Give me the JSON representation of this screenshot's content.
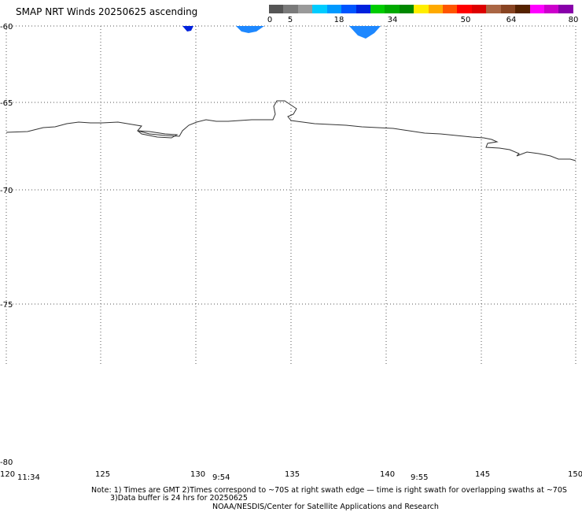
{
  "title": "SMAP NRT Winds 20250625 ascending",
  "colorbar": {
    "labels": [
      "0",
      "5",
      "18",
      "34",
      "50",
      "64",
      "80"
    ],
    "segments": [
      {
        "color": "#555555"
      },
      {
        "color": "#7a7a7a"
      },
      {
        "color": "#9a9a9a"
      },
      {
        "color": "#00ccff"
      },
      {
        "color": "#0099ff"
      },
      {
        "color": "#0055ff"
      },
      {
        "color": "#0022dd"
      },
      {
        "color": "#00cc00"
      },
      {
        "color": "#00aa00"
      },
      {
        "color": "#008800"
      },
      {
        "color": "#ffee00"
      },
      {
        "color": "#ffaa00"
      },
      {
        "color": "#ff5500"
      },
      {
        "color": "#ff0000"
      },
      {
        "color": "#dd0000"
      },
      {
        "color": "#aa6644"
      },
      {
        "color": "#884422"
      },
      {
        "color": "#552200"
      },
      {
        "color": "#ff00ff"
      },
      {
        "color": "#cc00cc"
      },
      {
        "color": "#8800aa"
      }
    ]
  },
  "map": {
    "lat_labels": [
      "-60",
      "-65",
      "-70",
      "-75",
      "-80"
    ],
    "lon_labels": [
      "120",
      "125",
      "130",
      "135",
      "140",
      "145",
      "150"
    ],
    "time_labels": [
      "11:34",
      "9:54",
      "9:55"
    ],
    "colors": {
      "coast": "#333333",
      "grid": "#555555",
      "swath_blue": "#1e88ff",
      "swath_dark": "#0022dd"
    }
  },
  "notes": {
    "line1": "Note: 1) Times are GMT 2)Times correspond to ~70S at right swath edge — time is right swath for overlapping swaths at ~70S",
    "line2": "3)Data buffer is 24 hrs for 20250625",
    "line3": "NOAA/NESDIS/Center for Satellite Applications and Research"
  }
}
